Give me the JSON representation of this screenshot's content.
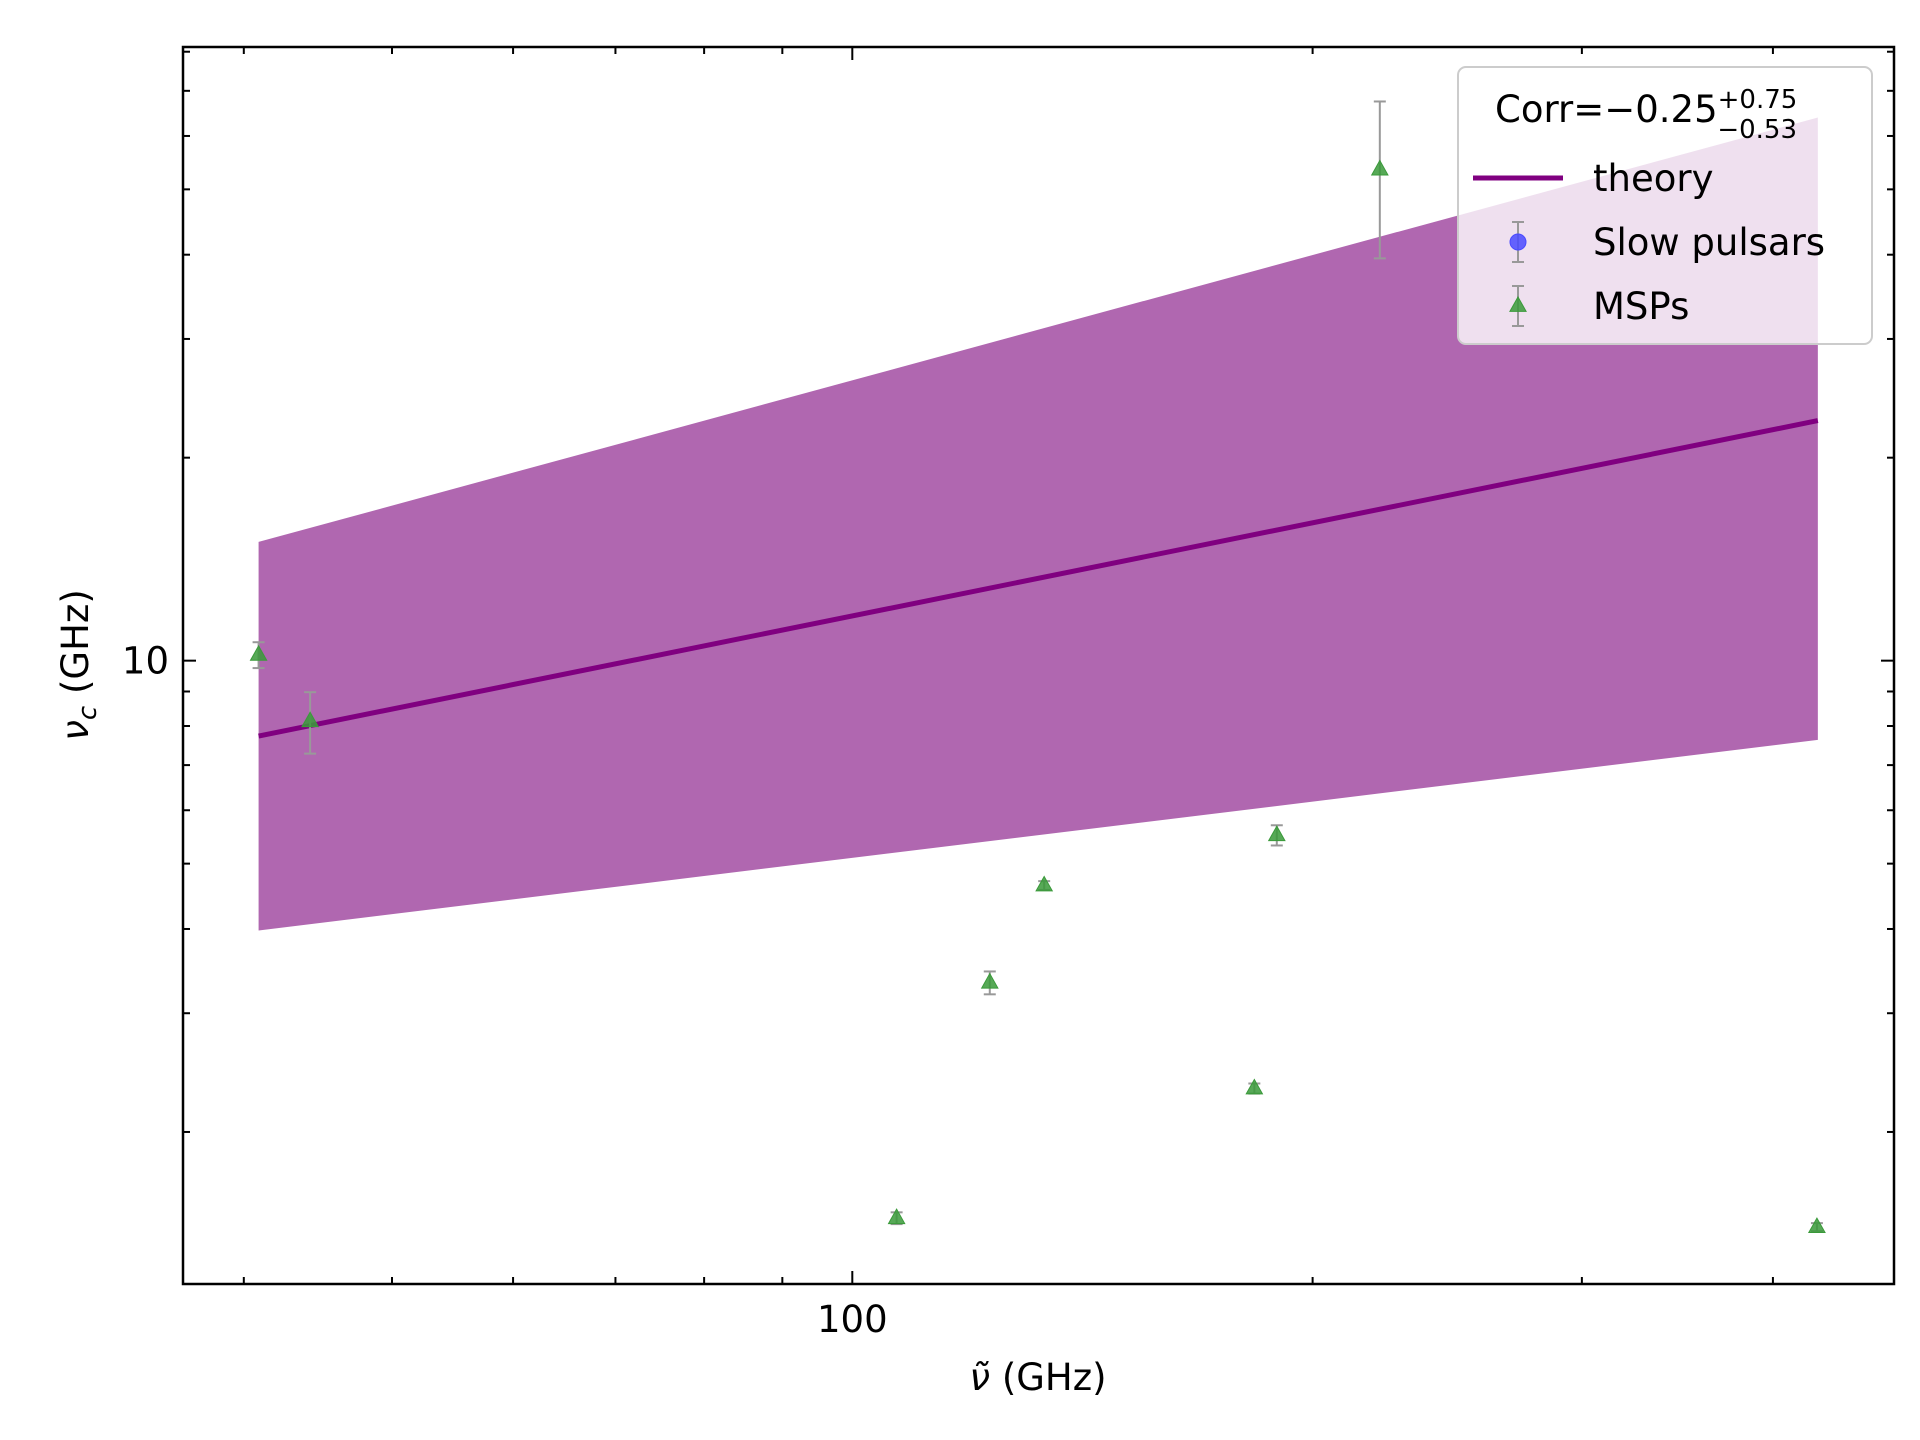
{
  "chart_data": {
    "type": "scatter",
    "x_label": {
      "symbol": "ν̃",
      "unit": "(GHz)"
    },
    "y_label": {
      "symbol": "ν",
      "subscript": "c",
      "unit": "(GHz)"
    },
    "legend_title": {
      "base": "Corr=−0.25",
      "sup": "+0.75",
      "sub": "−0.53"
    },
    "log_x": true,
    "log_y": true,
    "xlim": [
      36.5,
      480
    ],
    "ylim": [
      1.19,
      81.3
    ],
    "xticks": [
      100
    ],
    "yticks": [
      10
    ],
    "xminor": [
      40,
      50,
      60,
      70,
      80,
      90,
      200,
      300,
      400
    ],
    "yminor": [
      2,
      3,
      4,
      5,
      6,
      7,
      8,
      9,
      20,
      30,
      40,
      50,
      60,
      70,
      80
    ],
    "legend_position": "upper right",
    "band": {
      "color": "#b067b0",
      "x": [
        40.9,
        428
      ],
      "upper": [
        15.0,
        63.9
      ],
      "lower": [
        3.98,
        7.63
      ]
    },
    "series": [
      {
        "name": "theory",
        "kind": "line",
        "color": "#800080",
        "x": [
          40.9,
          428
        ],
        "values": [
          7.73,
          22.7
        ]
      },
      {
        "name": "Slow pulsars",
        "kind": "circle",
        "color": "#4a4aff",
        "x": [],
        "values": [],
        "errors": []
      },
      {
        "name": "MSPs",
        "kind": "triangle",
        "color": "#3a9a3a",
        "x": [
          40.9,
          44.2,
          106.9,
          123,
          133.5,
          183.2,
          189.5,
          221.3,
          427.4
        ],
        "values": [
          10.2,
          8.13,
          1.49,
          3.33,
          4.64,
          2.32,
          5.51,
          53.5,
          1.445
        ],
        "errors": [
          0.45,
          0.85,
          0.03,
          0.13,
          0.07,
          0.04,
          0.19,
          14,
          0.02
        ]
      }
    ]
  }
}
